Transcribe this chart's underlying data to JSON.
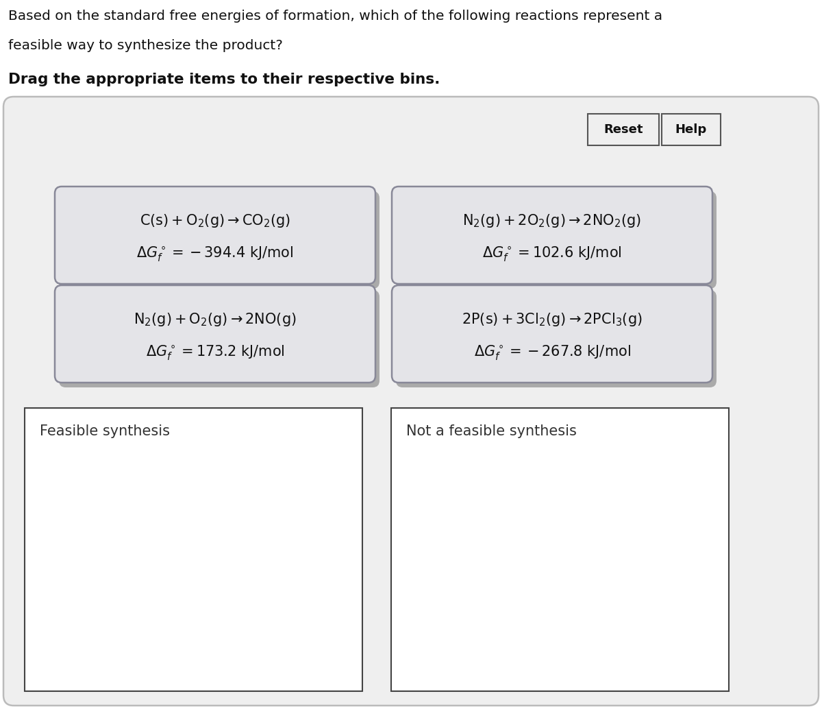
{
  "title_line1": "Based on the standard free energies of formation, which of the following reactions represent a",
  "title_line2": "feasible way to synthesize the product?",
  "subtitle": "Drag the appropriate items to their respective bins.",
  "bg_color": "#ffffff",
  "outer_box_color": "#bbbbbb",
  "outer_box_fill": "#efefef",
  "card_fill": "#e4e4e8",
  "card_edge": "#888898",
  "card_shadow": "#aaaaaa",
  "bin_fill": "#ffffff",
  "bin_edge": "#444444",
  "button_fill": "#efefef",
  "button_edge": "#555555",
  "cards": [
    {
      "line1": "$\\mathrm{C(s) + O_2(g)\\to CO_2(g)}$",
      "line2": "$\\Delta G_f^\\circ = -394.4\\ \\mathrm{kJ/mol}$",
      "col": 0,
      "row": 0
    },
    {
      "line1": "$\\mathrm{N_2(g) + 2O_2(g)\\to 2NO_2(g)}$",
      "line2": "$\\Delta G_f^\\circ = 102.6\\ \\mathrm{kJ/mol}$",
      "col": 1,
      "row": 0
    },
    {
      "line1": "$\\mathrm{N_2(g) + O_2(g)\\to 2NO(g)}$",
      "line2": "$\\Delta G_f^\\circ = 173.2\\ \\mathrm{kJ/mol}$",
      "col": 0,
      "row": 1
    },
    {
      "line1": "$\\mathrm{2P(s) + 3Cl_2(g)\\to 2PCl_3(g)}$",
      "line2": "$\\Delta G_f^\\circ = -267.8\\ \\mathrm{kJ/mol}$",
      "col": 1,
      "row": 1
    }
  ],
  "bin_labels": [
    "Feasible synthesis",
    "Not a feasible synthesis"
  ],
  "reset_label": "Reset",
  "help_label": "Help",
  "title_fontsize": 14.5,
  "subtitle_fontsize": 15.5,
  "card_fontsize": 15,
  "bin_label_fontsize": 15
}
